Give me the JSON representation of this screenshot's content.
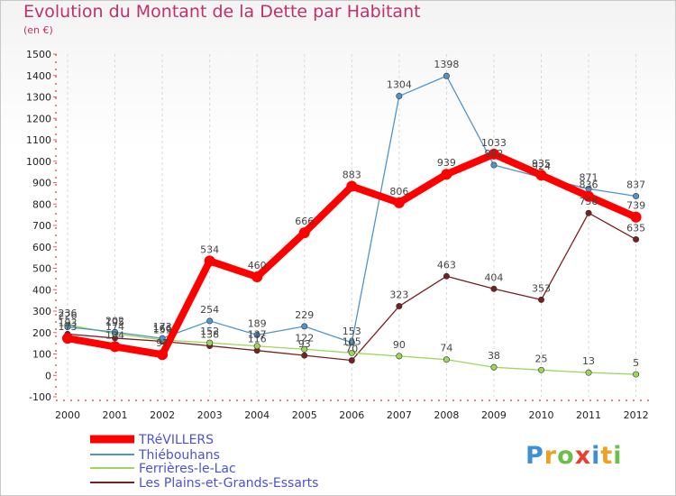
{
  "header": {
    "title": "Evolution du Montant de la Dette par Habitant",
    "subtitle": "(en €)"
  },
  "logo": {
    "text": "Proxiti",
    "colors": [
      "#3d8fd6",
      "#f0a020",
      "#6cc04a",
      "#e8402a",
      "#3d8fd6",
      "#f0a020",
      "#6cc04a"
    ]
  },
  "chart_data": {
    "type": "line",
    "title": "Evolution du Montant de la Dette par Habitant",
    "subtitle": "(en €)",
    "xlabel": "",
    "ylabel": "",
    "ylim": [
      -100,
      1500
    ],
    "yticks": [
      -100,
      0,
      100,
      200,
      300,
      400,
      500,
      600,
      700,
      800,
      900,
      1000,
      1100,
      1200,
      1300,
      1400,
      1500
    ],
    "grid": "vertical dashed",
    "legend": "bottom-left",
    "x": [
      "2000",
      "2001",
      "2002",
      "2003",
      "2004",
      "2005",
      "2006",
      "2007",
      "2008",
      "2009",
      "2010",
      "2011",
      "2012"
    ],
    "series": [
      {
        "name": "TRéVILLERS",
        "color": "#ff0000",
        "values": [
          173,
          134,
          97,
          534,
          460,
          666,
          883,
          806,
          939,
          1033,
          935,
          836,
          739
        ],
        "labels": [
          "173",
          "134",
          "97",
          "534",
          "460",
          "666",
          "883",
          "806",
          "939",
          "1033",
          "935",
          "836",
          "739"
        ]
      },
      {
        "name": "Thiébouhans",
        "color": "#4f95cc",
        "values": [
          226,
          202,
          173,
          254,
          189,
          229,
          153,
          1304,
          1398,
          982,
          924,
          871,
          837
        ],
        "labels": [
          "226",
          "202",
          "173",
          "254",
          "189",
          "229",
          "153",
          "1304",
          "1398",
          "982",
          "924",
          "871",
          "837"
        ]
      },
      {
        "name": "Ferrières-le-Lac",
        "color": "#9ed65a",
        "values": [
          236,
          195,
          166,
          152,
          137,
          122,
          105,
          90,
          74,
          38,
          25,
          13,
          5
        ],
        "labels": [
          "236",
          "195",
          "166",
          "152",
          "137",
          "122",
          "105",
          "90",
          "74",
          "38",
          "25",
          "13",
          "5"
        ]
      },
      {
        "name": "Les Plains-et-Grands-Essarts",
        "color": "#7a1f1f",
        "values": [
          193,
          174,
          159,
          138,
          116,
          93,
          70,
          323,
          463,
          404,
          353,
          758,
          635
        ],
        "labels": [
          "193",
          "174",
          "159",
          "138",
          "116",
          "93",
          "70",
          "323",
          "463",
          "404",
          "353",
          "758",
          "635"
        ]
      }
    ]
  }
}
